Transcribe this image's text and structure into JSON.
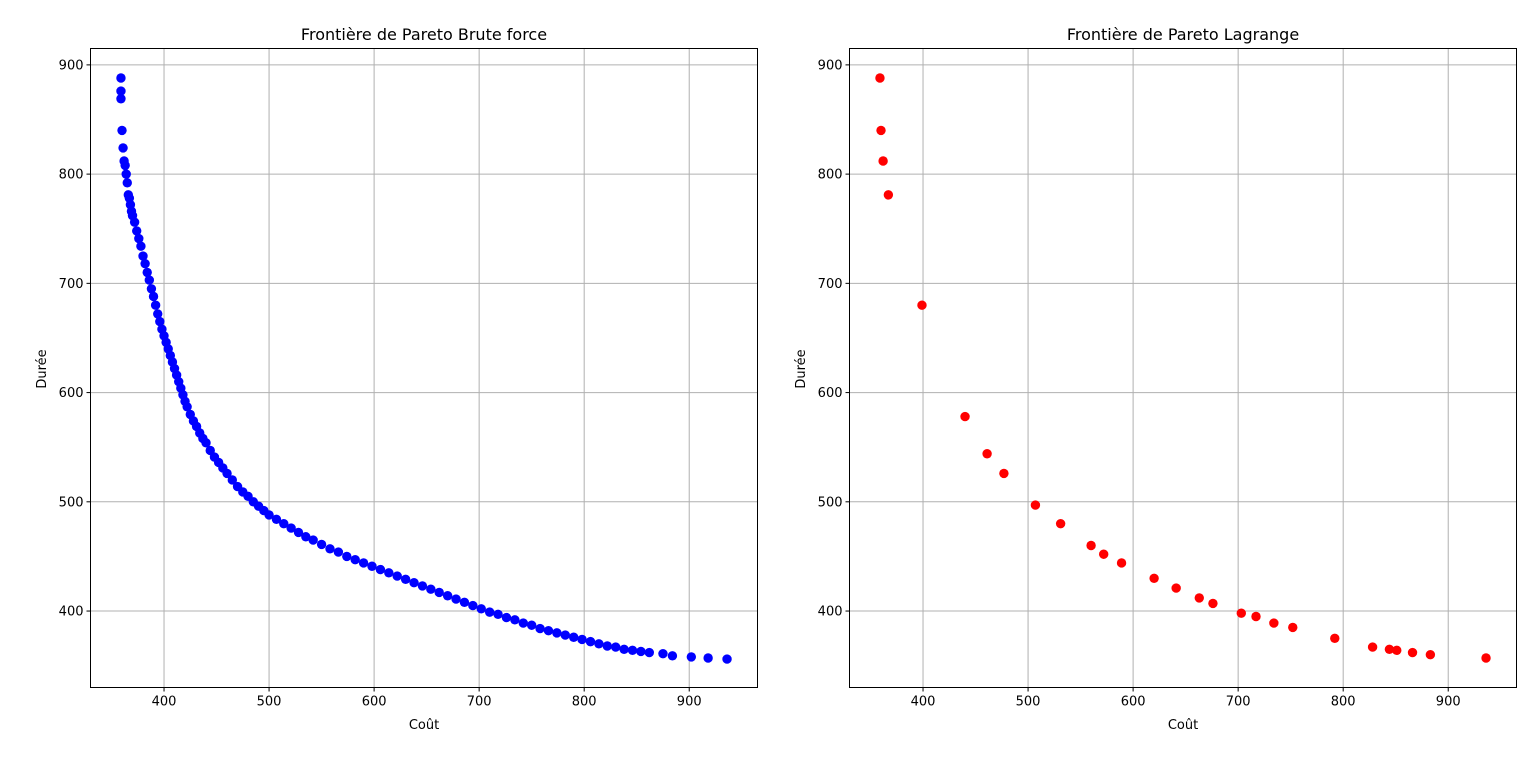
{
  "chart_data": [
    {
      "type": "scatter",
      "title": "Frontière de Pareto Brute force",
      "xlabel": "Coût",
      "ylabel": "Durée",
      "xlim": [
        330,
        965
      ],
      "ylim": [
        330,
        915
      ],
      "xticks": [
        400,
        500,
        600,
        700,
        800,
        900
      ],
      "yticks": [
        400,
        500,
        600,
        700,
        800,
        900
      ],
      "grid": true,
      "color": "#0000ff",
      "series": [
        {
          "x": [
            359,
            359,
            359,
            360,
            361,
            362,
            363,
            364,
            365,
            366,
            367,
            368,
            369,
            370,
            372,
            374,
            376,
            378,
            380,
            382,
            384,
            386,
            388,
            390,
            392,
            394,
            396,
            398,
            400,
            402,
            404,
            406,
            408,
            410,
            412,
            414,
            416,
            418,
            420,
            422,
            425,
            428,
            431,
            434,
            437,
            440,
            444,
            448,
            452,
            456,
            460,
            465,
            470,
            475,
            480,
            485,
            490,
            495,
            500,
            507,
            514,
            521,
            528,
            535,
            542,
            550,
            558,
            566,
            574,
            582,
            590,
            598,
            606,
            614,
            622,
            630,
            638,
            646,
            654,
            662,
            670,
            678,
            686,
            694,
            702,
            710,
            718,
            726,
            734,
            742,
            750,
            758,
            766,
            774,
            782,
            790,
            798,
            806,
            814,
            822,
            830,
            838,
            846,
            854,
            862,
            875,
            884,
            902,
            918,
            936
          ],
          "y": [
            888,
            876,
            869,
            840,
            824,
            812,
            808,
            800,
            792,
            781,
            778,
            772,
            766,
            762,
            756,
            748,
            741,
            734,
            725,
            718,
            710,
            703,
            695,
            688,
            680,
            672,
            665,
            658,
            652,
            646,
            640,
            634,
            628,
            622,
            616,
            610,
            604,
            598,
            592,
            587,
            580,
            574,
            569,
            563,
            558,
            554,
            547,
            541,
            536,
            531,
            526,
            520,
            514,
            509,
            505,
            500,
            496,
            492,
            488,
            484,
            480,
            476,
            472,
            468,
            465,
            461,
            457,
            454,
            450,
            447,
            444,
            441,
            438,
            435,
            432,
            429,
            426,
            423,
            420,
            417,
            414,
            411,
            408,
            405,
            402,
            399,
            397,
            394,
            392,
            389,
            387,
            384,
            382,
            380,
            378,
            376,
            374,
            372,
            370,
            368,
            367,
            365,
            364,
            363,
            362,
            361,
            359,
            358,
            357,
            356
          ]
        }
      ]
    },
    {
      "type": "scatter",
      "title": "Frontière de Pareto Lagrange",
      "xlabel": "Coût",
      "ylabel": "Durée",
      "xlim": [
        330,
        965
      ],
      "ylim": [
        330,
        915
      ],
      "xticks": [
        400,
        500,
        600,
        700,
        800,
        900
      ],
      "yticks": [
        400,
        500,
        600,
        700,
        800,
        900
      ],
      "grid": true,
      "color": "#ff0000",
      "series": [
        {
          "x": [
            359,
            360,
            362,
            367,
            399,
            440,
            461,
            477,
            507,
            531,
            560,
            572,
            589,
            620,
            641,
            663,
            676,
            703,
            717,
            734,
            752,
            792,
            828,
            844,
            851,
            866,
            883,
            936
          ],
          "y": [
            888,
            840,
            812,
            781,
            680,
            578,
            544,
            526,
            497,
            480,
            460,
            452,
            444,
            430,
            421,
            412,
            407,
            398,
            395,
            389,
            385,
            375,
            367,
            365,
            364,
            362,
            360,
            357
          ]
        }
      ]
    }
  ]
}
